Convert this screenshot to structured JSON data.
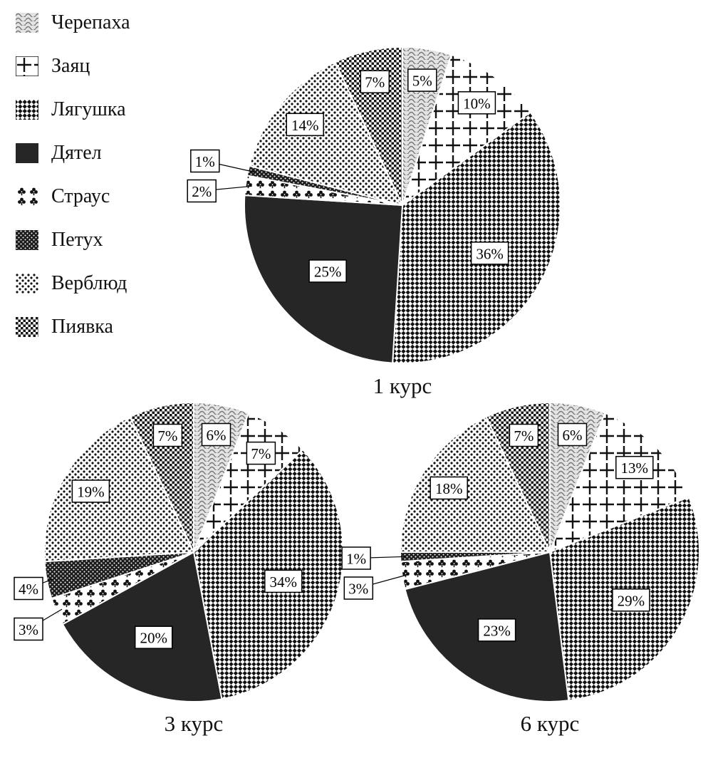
{
  "legend": {
    "items": [
      {
        "label": "Черепаха",
        "pattern": "waves"
      },
      {
        "label": "Заяц",
        "pattern": "plus-grid"
      },
      {
        "label": "Лягушка",
        "pattern": "diagonal-check"
      },
      {
        "label": "Дятел",
        "pattern": "solid"
      },
      {
        "label": "Страус",
        "pattern": "clubs"
      },
      {
        "label": "Петух",
        "pattern": "dark-dots"
      },
      {
        "label": "Верблюд",
        "pattern": "polka-dots"
      },
      {
        "label": "Пиявка",
        "pattern": "checkerboard"
      }
    ]
  },
  "colors": {
    "dark": "#262626",
    "box_border": "#000000",
    "box_fill": "#ffffff"
  },
  "chart_data": [
    {
      "type": "pie",
      "title": "1 курс",
      "legend_position": "top-left",
      "categories": [
        "Черепаха",
        "Заяц",
        "Лягушка",
        "Дятел",
        "Страус",
        "Петух",
        "Верблюд",
        "Пиявка"
      ],
      "values": [
        5,
        10,
        36,
        25,
        2,
        1,
        14,
        7
      ],
      "labels": [
        "5%",
        "10%",
        "36%",
        "25%",
        "2%",
        "1%",
        "14%",
        "7%"
      ]
    },
    {
      "type": "pie",
      "title": "3 курс",
      "legend_position": "top-left",
      "categories": [
        "Черепаха",
        "Заяц",
        "Лягушка",
        "Дятел",
        "Страус",
        "Петух",
        "Верблюд",
        "Пиявка"
      ],
      "values": [
        6,
        7,
        34,
        20,
        3,
        4,
        19,
        7
      ],
      "labels": [
        "6%",
        "7%",
        "34%",
        "20%",
        "3%",
        "4%",
        "19%",
        "7%"
      ]
    },
    {
      "type": "pie",
      "title": "6 курс",
      "legend_position": "top-left",
      "categories": [
        "Черепаха",
        "Заяц",
        "Лягушка",
        "Дятел",
        "Страус",
        "Петух",
        "Верблюд",
        "Пиявка"
      ],
      "values": [
        6,
        13,
        29,
        23,
        3,
        1,
        18,
        7
      ],
      "labels": [
        "6%",
        "13%",
        "29%",
        "23%",
        "3%",
        "1%",
        "18%",
        "7%"
      ]
    }
  ]
}
